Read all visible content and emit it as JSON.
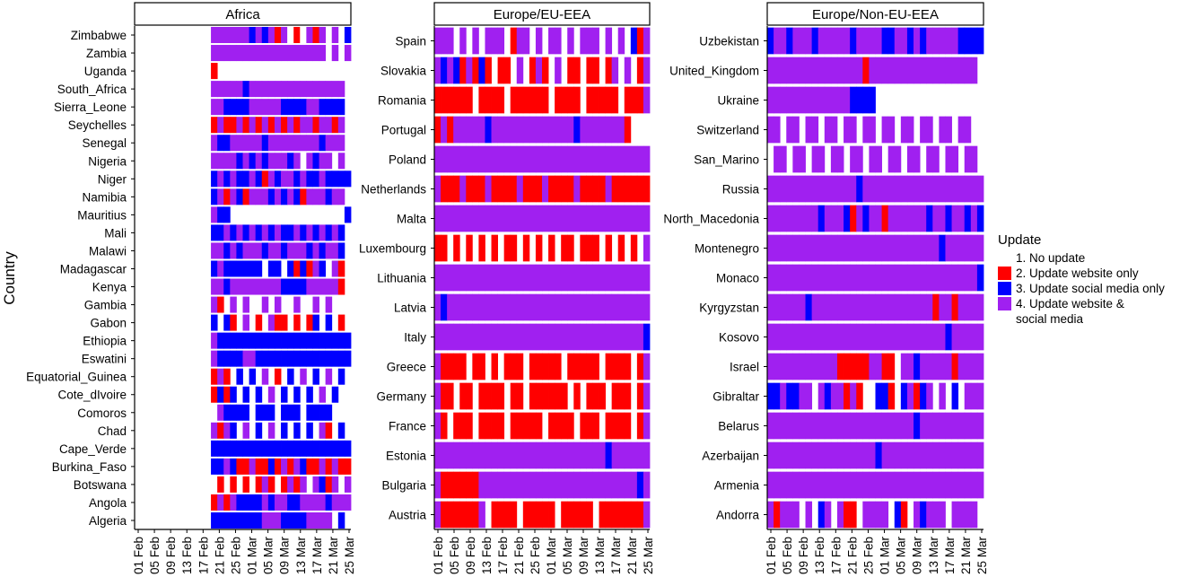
{
  "chart_data": {
    "type": "heatmap",
    "ylabel": "Country",
    "x_ticks": [
      "01 Feb",
      "05 Feb",
      "09 Feb",
      "13 Feb",
      "17 Feb",
      "21 Feb",
      "25 Feb",
      "01 Mar",
      "05 Mar",
      "09 Mar",
      "13 Mar",
      "17 Mar",
      "21 Mar",
      "25 Mar"
    ],
    "legend": {
      "title": "Update",
      "position": "right",
      "items": [
        {
          "label": "1. No update",
          "color": "#ffffff"
        },
        {
          "label": "2. Update website only",
          "color": "#ff0000"
        },
        {
          "label": "3. Update social media only",
          "color": "#0000ff"
        },
        {
          "label": "4. Update website &",
          "label2": " social media",
          "color": "#a020f0"
        }
      ]
    },
    "panels": [
      {
        "title": "Africa",
        "countries": [
          "Zimbabwe",
          "Zambia",
          "Uganda",
          "South_Africa",
          "Sierra_Leone",
          "Seychelles",
          "Senegal",
          "Nigeria",
          "Niger",
          "Namibia",
          "Mauritius",
          "Mali",
          "Malawi",
          "Madagascar",
          "Kenya",
          "Gambia",
          "Gabon",
          "Ethiopia",
          "Eswatini",
          "Equatorial_Guinea",
          "Cote_dIvoire",
          "Comoros",
          "Chad",
          "Cape_Verde",
          "Burkina_Faso",
          "Botswana",
          "Angola",
          "Algeria"
        ],
        "patterns": [
          "0000000000004444443434241214240403",
          "0000000000004444444444444444440404",
          "0000000000002000000000000000000000",
          "0000000000004444434444444444444440",
          "0000000000004433334444433334433330",
          "0000000000002422424242424244244240",
          "0000000000004334444434444444434440",
          "0000000000004444343434443404344040",
          "0000000000003434334324344343343333",
          "0000000000003424324443434324443440",
          "0000000000004330000000000000000003",
          "0000000000003343434343433434343430",
          "0000000000004434344434434443434430",
          "0000000000003433333303303232430420",
          "0000000000004434444444433334444420",
          "0000000000004204040040400400404000",
          "0000000000003032040204220202303020",
          "0000000000004333333333333333333333",
          "0000000000004333344333333333333333",
          "0000000000002420303040203040304030",
          "0000000000002323030304030303040300",
          "0000000000000433330333033303333000",
          "0000000000004243040304030303042030",
          "0000000000003333333333333333333333",
          "0000000000003343224223242432242422",
          "0000000000000202020242024240432404",
          "0000000000002424333343443344443444",
          "0000000000003333333344433334444030"
        ]
      },
      {
        "title": "Europe/EU-EEA",
        "countries": [
          "Spain",
          "Slovakia",
          "Romania",
          "Portugal",
          "Poland",
          "Netherlands",
          "Malta",
          "Luxembourg",
          "Lithuania",
          "Latvia",
          "Italy",
          "Greece",
          "Germany",
          "France",
          "Estonia",
          "Bulgaria",
          "Austria"
        ],
        "patterns": [
          "4440404044402440404404044404040324",
          "4343242320220402420402202202404024",
          "2222220222202222220222202222202224",
          "2424444434444444444444344444442000",
          "4444444444444444444444444444444444",
          "4222422242222422242222422224222222",
          "4444444444444444444444444444444444",
          "2202020202022020202022022202020204",
          "4444444444444444444444444444444444",
          "4344444444444444444444444444444444",
          "4444444444444444444444444444444443",
          "4222202202022202222202222202222024",
          "4220220222202202222220202220222024",
          "4202220222202222202222022202222024",
          "4444444444444444444444444443444444",
          "4222222444444444444444444444444434",
          "4222222402222022222022222022222224"
        ]
      },
      {
        "title": "Europe/Non-EU-EEA",
        "countries": [
          "Uzbekistan",
          "United_Kingdom",
          "Ukraine",
          "Switzerland",
          "San_Marino",
          "Russia",
          "North_Macedonia",
          "Montenegro",
          "Monaco",
          "Kyrgyzstan",
          "Kosovo",
          "Israel",
          "Gibraltar",
          "Belarus",
          "Azerbaijan",
          "Armenia",
          "Andorra"
        ],
        "patterns": [
          "3443444344444344443344343444443333",
          "4444444444444442444444444444444440",
          "4444444444444333300000000000000000",
          "4404404404404404404404404404404400",
          "0440440440440440440440440440440440",
          "4444444444444434444444444444444444",
          "4444444434443243442444444344344343",
          "4444444444444444444444444443444444",
          "4444444444444444444444444444444443",
          "4444443444444444444444444424424444",
          "4444444444444444444444444444344444",
          "4444444444422222442204434444424444",
          "3343344043442420033203423404030444",
          "4444444444444444444444434444444444",
          "4444444444444444434444444444444444",
          "4444444444444444444444444444444444",
          "4244404034042204444032043444044440"
        ]
      }
    ]
  }
}
